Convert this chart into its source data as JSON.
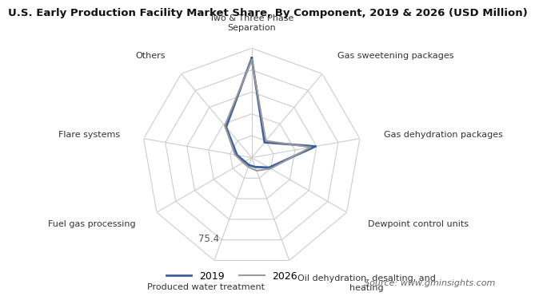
{
  "title": "U.S. Early Production Facility Market Share, By Component, 2019 & 2026 (USD Million)",
  "categories": [
    "Two & Three Phase\nSeparation",
    "Gas sweetening packages",
    "Gas dehydration packages",
    "Dewpoint control units",
    "Oil dehydration, desalting, and\nheating",
    "Produced water treatment",
    "Fuel gas processing",
    "Flare systems",
    "Others"
  ],
  "series": [
    {
      "label": "2019",
      "color": "#3a5fa0",
      "linewidth": 2.0,
      "values": [
        100,
        20,
        65,
        20,
        10,
        8,
        8,
        15,
        40
      ]
    },
    {
      "label": "2026",
      "color": "#999999",
      "linewidth": 1.5,
      "values": [
        98,
        22,
        60,
        22,
        14,
        10,
        10,
        17,
        42
      ]
    }
  ],
  "grid_color": "#cccccc",
  "grid_levels": 5,
  "radar_max": 110,
  "ring_label": "75.4",
  "ring_label_level": 4,
  "background_color": "#ffffff",
  "title_fontsize": 9.5,
  "label_fontsize": 8.0,
  "legend_fontsize": 9,
  "source_text": "Source: www.gminsights.com",
  "source_fontsize": 8
}
